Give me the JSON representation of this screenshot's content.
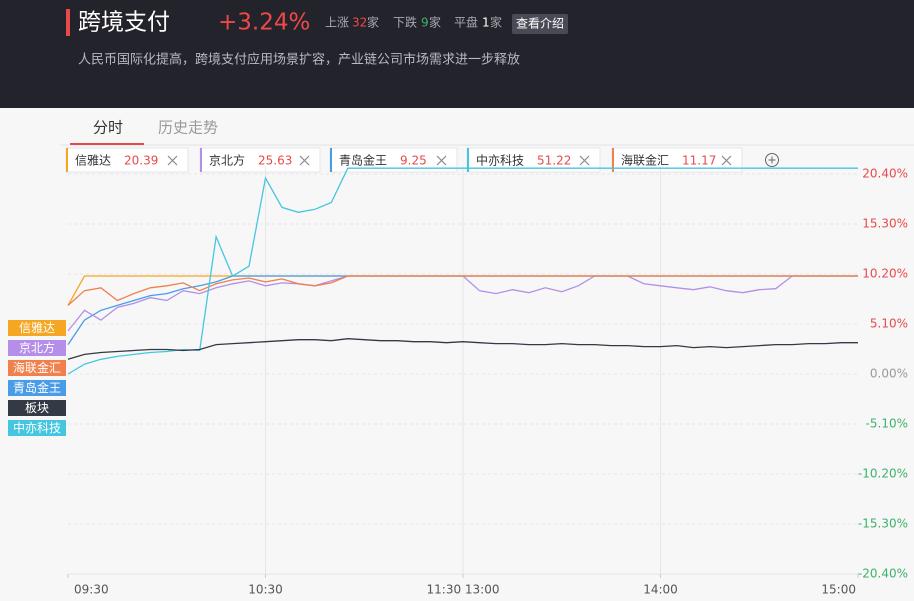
{
  "header": {
    "title": "跨境支付",
    "change": "+3.24%",
    "stats": [
      {
        "label": "上涨",
        "count": "32",
        "unit": "家"
      },
      {
        "label": "下跌",
        "count": "9",
        "unit": "家"
      },
      {
        "label": "平盘",
        "count": "1",
        "unit": "家"
      }
    ],
    "button": "查看介绍",
    "description": "人民币国际化提高，跨境支付应用场景扩容，产业链公司市场需求进一步释放"
  },
  "tabs": [
    "分时",
    "历史走势"
  ],
  "chips": [
    {
      "name": "信雅达",
      "price": "20.39",
      "color": "#f5a623"
    },
    {
      "name": "京北方",
      "price": "25.63",
      "color": "#b48ee8"
    },
    {
      "name": "青岛金王",
      "price": "9.25",
      "color": "#4a9ce8"
    },
    {
      "name": "中亦科技",
      "price": "51.22",
      "color": "#45c6e0"
    },
    {
      "name": "海联金汇",
      "price": "11.17",
      "color": "#f0804c"
    }
  ],
  "chart_data": {
    "type": "line",
    "categories": [
      "09:30",
      null,
      null,
      null,
      null,
      null,
      null,
      null,
      null,
      null,
      null,
      null,
      "10:30",
      null,
      null,
      null,
      null,
      null,
      null,
      null,
      null,
      null,
      null,
      null,
      "11:30 13:00",
      null,
      null,
      null,
      null,
      null,
      null,
      null,
      null,
      null,
      null,
      null,
      "14:00",
      null,
      null,
      null,
      null,
      null,
      null,
      null,
      null,
      null,
      null,
      null,
      "15:00"
    ],
    "ylim": [
      -20.4,
      21.2
    ],
    "yticks": [
      {
        "value": 20.4,
        "label": "20.40%"
      },
      {
        "value": 15.3,
        "label": "15.30%"
      },
      {
        "value": 10.2,
        "label": "10.20%"
      },
      {
        "value": 5.1,
        "label": "5.10%"
      },
      {
        "value": 0,
        "label": "0.00%"
      },
      {
        "value": -5.1,
        "label": "-5.10%"
      },
      {
        "value": -10.2,
        "label": "-10.20%"
      },
      {
        "value": -15.3,
        "label": "-15.30%"
      },
      {
        "value": -20.4,
        "label": "-20.40%"
      }
    ],
    "grid": true,
    "series": [
      {
        "name": "信雅达",
        "color": "#f5a623",
        "values": [
          7,
          10,
          10,
          10,
          10,
          10,
          10,
          10,
          10,
          10,
          10,
          10,
          10,
          10,
          10,
          10,
          10,
          10,
          10,
          10,
          10,
          10,
          10,
          10,
          10,
          10,
          10,
          10,
          10,
          10,
          10,
          10,
          10,
          10,
          10,
          10,
          10,
          10,
          10,
          10,
          10,
          10,
          10,
          10,
          10,
          10,
          10,
          10,
          10
        ]
      },
      {
        "name": "京北方",
        "color": "#b48ee8",
        "values": [
          4.4,
          6.5,
          5.5,
          6.8,
          7.2,
          7.8,
          7.5,
          8.5,
          8.2,
          8.8,
          9.2,
          9.5,
          9.0,
          9.3,
          9.2,
          9.0,
          9.5,
          10,
          10,
          10,
          10,
          10,
          10,
          10,
          10,
          8.5,
          8.2,
          8.6,
          8.3,
          8.8,
          8.4,
          9.0,
          10,
          10,
          10,
          9.2,
          9.0,
          8.8,
          8.6,
          8.9,
          8.5,
          8.3,
          8.6,
          8.7,
          10,
          10,
          10,
          10,
          10
        ]
      },
      {
        "name": "海联金汇",
        "color": "#f0804c",
        "values": [
          7,
          8.5,
          8.8,
          7.5,
          8.2,
          8.8,
          9,
          9.3,
          8.5,
          9.2,
          9.6,
          9.8,
          9.4,
          9.7,
          9.2,
          9.0,
          9.3,
          10,
          10,
          10,
          10,
          10,
          10,
          10,
          10,
          10,
          10,
          10,
          10,
          10,
          10,
          10,
          10,
          10,
          10,
          10,
          10,
          10,
          10,
          10,
          10,
          10,
          10,
          10,
          10,
          10,
          10,
          10,
          10
        ]
      },
      {
        "name": "青岛金王",
        "color": "#4a9ce8",
        "values": [
          3,
          5.5,
          6.5,
          7,
          7.5,
          8,
          8.2,
          8.7,
          9,
          9.4,
          10,
          10,
          10,
          10,
          10,
          10,
          10,
          10,
          10,
          10,
          10,
          10,
          10,
          10,
          10,
          10,
          10,
          10,
          10,
          10,
          10,
          10,
          10,
          10,
          10,
          10,
          10,
          10,
          10,
          10,
          10,
          10,
          10,
          10,
          10,
          10,
          10,
          10,
          10
        ]
      },
      {
        "name": "板块",
        "color": "#333a45",
        "values": [
          1.5,
          2.0,
          2.2,
          2.3,
          2.4,
          2.5,
          2.5,
          2.4,
          2.5,
          3.0,
          3.1,
          3.2,
          3.3,
          3.4,
          3.5,
          3.5,
          3.4,
          3.6,
          3.5,
          3.4,
          3.4,
          3.3,
          3.3,
          3.2,
          3.3,
          3.2,
          3.1,
          3.1,
          3.0,
          3.0,
          3.1,
          3.0,
          3.0,
          2.9,
          2.9,
          2.8,
          2.8,
          2.9,
          2.7,
          2.8,
          2.7,
          2.8,
          2.9,
          3.0,
          3.0,
          3.1,
          3.1,
          3.2,
          3.2
        ]
      },
      {
        "name": "中亦科技",
        "color": "#45c6e0",
        "values": [
          0,
          1,
          1.5,
          1.8,
          2,
          2.2,
          2.3,
          2.5,
          2.4,
          14,
          10,
          11,
          20,
          17,
          16.5,
          16.8,
          17.5,
          21,
          21,
          21,
          21,
          21,
          21,
          21,
          21,
          21,
          21,
          21,
          21,
          21,
          21,
          21,
          21,
          21,
          21,
          21,
          21,
          21,
          21,
          21,
          21,
          21,
          21,
          21,
          21,
          21,
          21,
          21,
          21
        ]
      }
    ]
  }
}
